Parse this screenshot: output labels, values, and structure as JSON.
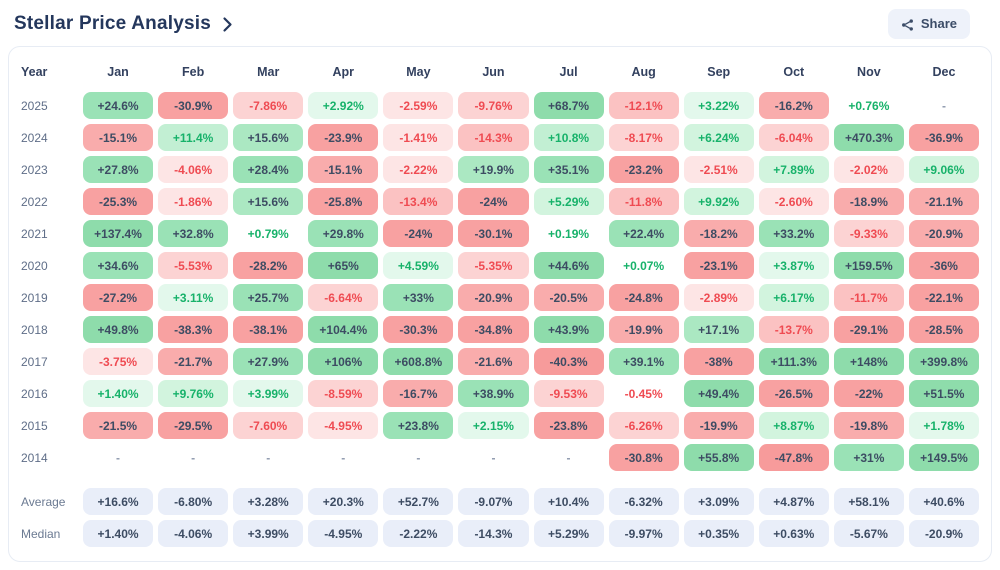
{
  "header": {
    "title": "Stellar Price Analysis",
    "share_label": "Share"
  },
  "table": {
    "year_header": "Year",
    "months": [
      "Jan",
      "Feb",
      "Mar",
      "Apr",
      "May",
      "Jun",
      "Jul",
      "Aug",
      "Sep",
      "Oct",
      "Nov",
      "Dec"
    ],
    "rows": [
      {
        "year": "2025",
        "cells": [
          "+24.6%",
          "-30.9%",
          "-7.86%",
          "+2.92%",
          "-2.59%",
          "-9.76%",
          "+68.7%",
          "-12.1%",
          "+3.22%",
          "-16.2%",
          "+0.76%",
          "-"
        ]
      },
      {
        "year": "2024",
        "cells": [
          "-15.1%",
          "+11.4%",
          "+15.6%",
          "-23.9%",
          "-1.41%",
          "-14.3%",
          "+10.8%",
          "-8.17%",
          "+6.24%",
          "-6.04%",
          "+470.3%",
          "-36.9%"
        ]
      },
      {
        "year": "2023",
        "cells": [
          "+27.8%",
          "-4.06%",
          "+28.4%",
          "-15.1%",
          "-2.22%",
          "+19.9%",
          "+35.1%",
          "-23.2%",
          "-2.51%",
          "+7.89%",
          "-2.02%",
          "+9.06%"
        ]
      },
      {
        "year": "2022",
        "cells": [
          "-25.3%",
          "-1.86%",
          "+15.6%",
          "-25.8%",
          "-13.4%",
          "-24%",
          "+5.29%",
          "-11.8%",
          "+9.92%",
          "-2.60%",
          "-18.9%",
          "-21.1%"
        ]
      },
      {
        "year": "2021",
        "cells": [
          "+137.4%",
          "+32.8%",
          "+0.79%",
          "+29.8%",
          "-24%",
          "-30.1%",
          "+0.19%",
          "+22.4%",
          "-18.2%",
          "+33.2%",
          "-9.33%",
          "-20.9%"
        ]
      },
      {
        "year": "2020",
        "cells": [
          "+34.6%",
          "-5.53%",
          "-28.2%",
          "+65%",
          "+4.59%",
          "-5.35%",
          "+44.6%",
          "+0.07%",
          "-23.1%",
          "+3.87%",
          "+159.5%",
          "-36%"
        ]
      },
      {
        "year": "2019",
        "cells": [
          "-27.2%",
          "+3.11%",
          "+25.7%",
          "-6.64%",
          "+33%",
          "-20.9%",
          "-20.5%",
          "-24.8%",
          "-2.89%",
          "+6.17%",
          "-11.7%",
          "-22.1%"
        ]
      },
      {
        "year": "2018",
        "cells": [
          "+49.8%",
          "-38.3%",
          "-38.1%",
          "+104.4%",
          "-30.3%",
          "-34.8%",
          "+43.9%",
          "-19.9%",
          "+17.1%",
          "-13.7%",
          "-29.1%",
          "-28.5%"
        ]
      },
      {
        "year": "2017",
        "cells": [
          "-3.75%",
          "-21.7%",
          "+27.9%",
          "+106%",
          "+608.8%",
          "-21.6%",
          "-40.3%",
          "+39.1%",
          "-38%",
          "+111.3%",
          "+148%",
          "+399.8%"
        ]
      },
      {
        "year": "2016",
        "cells": [
          "+1.40%",
          "+9.76%",
          "+3.99%",
          "-8.59%",
          "-16.7%",
          "+38.9%",
          "-9.53%",
          "-0.45%",
          "+49.4%",
          "-26.5%",
          "-22%",
          "+51.5%"
        ]
      },
      {
        "year": "2015",
        "cells": [
          "-21.5%",
          "-29.5%",
          "-7.60%",
          "-4.95%",
          "+23.8%",
          "+2.15%",
          "-23.8%",
          "-6.26%",
          "-19.9%",
          "+8.87%",
          "-19.8%",
          "+1.78%"
        ]
      },
      {
        "year": "2014",
        "cells": [
          "-",
          "-",
          "-",
          "-",
          "-",
          "-",
          "-",
          "-30.8%",
          "+55.8%",
          "-47.8%",
          "+31%",
          "+149.5%"
        ]
      }
    ],
    "summary_rows": [
      {
        "label": "Average",
        "cells": [
          "+16.6%",
          "-6.80%",
          "+3.28%",
          "+20.3%",
          "+52.7%",
          "-9.07%",
          "+10.4%",
          "-6.32%",
          "+3.09%",
          "+4.87%",
          "+58.1%",
          "+40.6%"
        ]
      },
      {
        "label": "Median",
        "cells": [
          "+1.40%",
          "-4.06%",
          "+3.99%",
          "-4.95%",
          "-2.22%",
          "-14.3%",
          "+5.29%",
          "-9.97%",
          "+0.35%",
          "+0.63%",
          "-5.67%",
          "-20.9%"
        ]
      }
    ]
  },
  "colors": {
    "positive_text": "#17b26a",
    "negative_text": "#ef4b52",
    "dark_text": "#3d4c63",
    "empty_text": "#8d99ad",
    "title_text": "#24375c",
    "share_bg": "#eef2fa",
    "summary_bg": "#e9eef9",
    "green_tiers": [
      "#e3f8ec",
      "#d2f4de",
      "#c2efd3",
      "#abe8c2",
      "#9ae2b6",
      "#8edcab"
    ],
    "red_tiers": [
      "#fde5e5",
      "#fcd3d3",
      "#fbc2c2",
      "#f9acac",
      "#f8a1a1",
      "#f79b9b"
    ],
    "tier_bounds": [
      5,
      10,
      15,
      22,
      40
    ],
    "white_below": 1,
    "dark_text_from": 15
  }
}
